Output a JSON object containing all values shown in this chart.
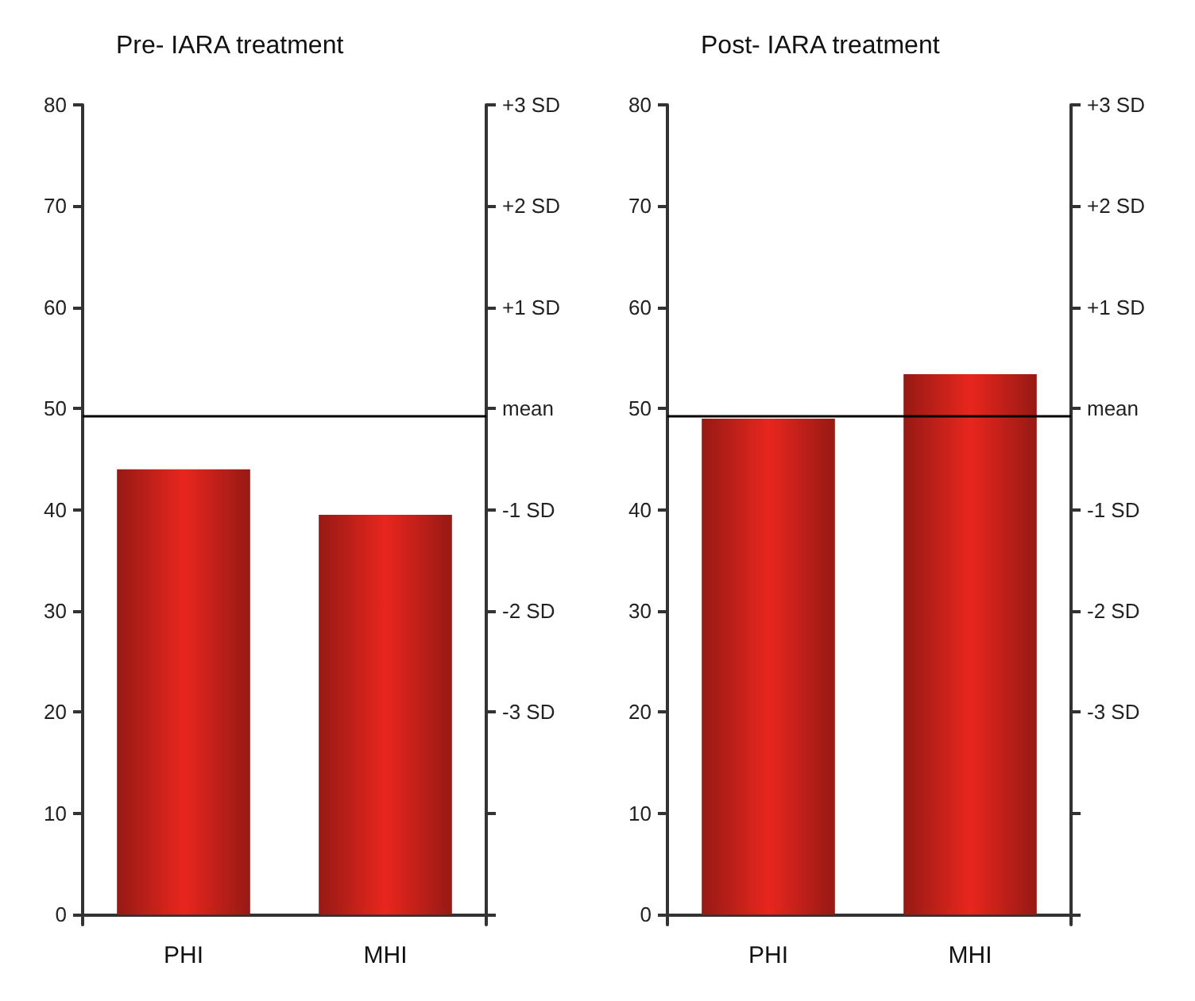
{
  "chart_data": [
    {
      "type": "bar",
      "title": "Pre- IARA treatment",
      "categories": [
        "PHI",
        "MHI"
      ],
      "values": [
        44,
        39.5
      ],
      "color": "#e8261e",
      "ylim": [
        -1,
        80
      ],
      "yticks": [
        0,
        10,
        20,
        30,
        40,
        50,
        60,
        70,
        80
      ],
      "annotations": [
        "+3 SD",
        "+2 SD",
        "+1 SD",
        "mean",
        "-1 SD",
        "-2 SD",
        "-3 SD"
      ],
      "ref_lines": [
        {
          "axis": "y",
          "value": 49.2,
          "color": "#000000"
        }
      ],
      "grid": false
    },
    {
      "type": "bar",
      "title": "Post- IARA treatment",
      "categories": [
        "PHI",
        "MHI"
      ],
      "values": [
        49,
        53.4
      ],
      "color": "#e8261e",
      "ylim": [
        -1,
        80
      ],
      "yticks": [
        0,
        10,
        20,
        30,
        40,
        50,
        60,
        70,
        80
      ],
      "annotations": [
        "+3 SD",
        "+2 SD",
        "+1 SD",
        "mean",
        "-1 SD",
        "-2 SD",
        "-3 SD"
      ],
      "ref_lines": [
        {
          "axis": "y",
          "value": 49.2,
          "color": "#000000"
        }
      ],
      "grid": false
    }
  ]
}
